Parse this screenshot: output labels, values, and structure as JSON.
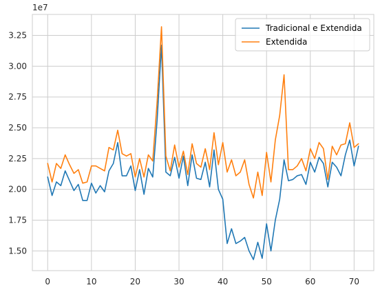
{
  "chart_data": {
    "type": "line",
    "title": "",
    "xlabel": "",
    "ylabel": "",
    "y_offset_label": "1e7",
    "y_scale": 10000000,
    "xlim": [
      -3.5,
      74.5
    ],
    "ylim": [
      13400000,
      34200000
    ],
    "xticks": [
      0,
      10,
      20,
      30,
      40,
      50,
      60,
      70
    ],
    "x_tick_labels": [
      "0",
      "10",
      "20",
      "30",
      "40",
      "50",
      "60",
      "70"
    ],
    "yticks": [
      15000000,
      17500000,
      20000000,
      22500000,
      25000000,
      27500000,
      30000000,
      32500000
    ],
    "y_tick_labels": [
      "1.50",
      "1.75",
      "2.00",
      "2.25",
      "2.50",
      "2.75",
      "3.00",
      "3.25"
    ],
    "grid": true,
    "legend_position": "top-right",
    "x": [
      0,
      1,
      2,
      3,
      4,
      5,
      6,
      7,
      8,
      9,
      10,
      11,
      12,
      13,
      14,
      15,
      16,
      17,
      18,
      19,
      20,
      21,
      22,
      23,
      24,
      25,
      26,
      27,
      28,
      29,
      30,
      31,
      32,
      33,
      34,
      35,
      36,
      37,
      38,
      39,
      40,
      41,
      42,
      43,
      44,
      45,
      46,
      47,
      48,
      49,
      50,
      51,
      52,
      53,
      54,
      55,
      56,
      57,
      58,
      59,
      60,
      61,
      62,
      63,
      64,
      65,
      66,
      67,
      68,
      69,
      70,
      71
    ],
    "series": [
      {
        "name": "Tradicional e Extendida",
        "color": "#1f77b4",
        "values": [
          21000000,
          19500000,
          20600000,
          20300000,
          21500000,
          20700000,
          19900000,
          20400000,
          19100000,
          19100000,
          20500000,
          19700000,
          20300000,
          19800000,
          21500000,
          22100000,
          23800000,
          21100000,
          21100000,
          21900000,
          19900000,
          21600000,
          19600000,
          21700000,
          21000000,
          25600000,
          31700000,
          21400000,
          21100000,
          22600000,
          20900000,
          22700000,
          20300000,
          22800000,
          20900000,
          20800000,
          22200000,
          20200000,
          23200000,
          20000000,
          19200000,
          15600000,
          16800000,
          15600000,
          15800000,
          16100000,
          15000000,
          14300000,
          15700000,
          14400000,
          17200000,
          15000000,
          17500000,
          19200000,
          22400000,
          20700000,
          20800000,
          21100000,
          21200000,
          20400000,
          22200000,
          21400000,
          22600000,
          22100000,
          20200000,
          22200000,
          21800000,
          21100000,
          22800000,
          24000000,
          21900000,
          23500000
        ]
      },
      {
        "name": "Extendida",
        "color": "#ff7f0e",
        "values": [
          22100000,
          20600000,
          22100000,
          21700000,
          22800000,
          22000000,
          21300000,
          21600000,
          20500000,
          20600000,
          21900000,
          21900000,
          21700000,
          21500000,
          23400000,
          23200000,
          24800000,
          22900000,
          22700000,
          22900000,
          21000000,
          22500000,
          21000000,
          22800000,
          22300000,
          27100000,
          33200000,
          22700000,
          21500000,
          23600000,
          21800000,
          23100000,
          21200000,
          23700000,
          22100000,
          21800000,
          23300000,
          21600000,
          24600000,
          22000000,
          23800000,
          21400000,
          22400000,
          21100000,
          21400000,
          22400000,
          20400000,
          19300000,
          21400000,
          19500000,
          23000000,
          20600000,
          24000000,
          26000000,
          29300000,
          21600000,
          21600000,
          21900000,
          22500000,
          21500000,
          23300000,
          22500000,
          23800000,
          23300000,
          20800000,
          23500000,
          22800000,
          23600000,
          23700000,
          25400000,
          23400000,
          23700000
        ]
      }
    ]
  }
}
